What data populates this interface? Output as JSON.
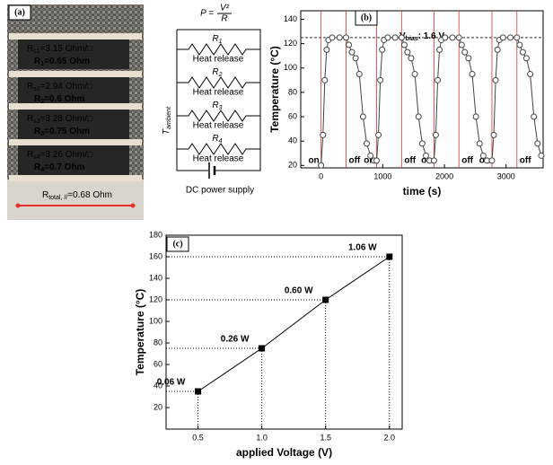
{
  "photo": {
    "label": "(a)",
    "samples": [
      {
        "sheet": {
          "main": "R",
          "sub": "s1",
          "rest": "=3.15 Ohm/□"
        },
        "resistance": {
          "main": "R",
          "sub": "1",
          "rest": "=0.65 Ohm"
        }
      },
      {
        "sheet": {
          "main": "R",
          "sub": "s2",
          "rest": "=2.94 Ohm/□"
        },
        "resistance": {
          "main": "R",
          "sub": "2",
          "rest": "=0.6 Ohm"
        }
      },
      {
        "sheet": {
          "main": "R",
          "sub": "s3",
          "rest": "=3.28 Ohm/□"
        },
        "resistance": {
          "main": "R",
          "sub": "3",
          "rest": "=0.75 Ohm"
        }
      },
      {
        "sheet": {
          "main": "R",
          "sub": "s4",
          "rest": "=3.26 Ohm/□"
        },
        "resistance": {
          "main": "R",
          "sub": "4",
          "rest": "=0.7 Ohm"
        }
      }
    ],
    "total": {
      "main": "R",
      "sub": "total, //",
      "rest": "=0.68 Ohm"
    }
  },
  "circuit": {
    "formula": {
      "lhs": "P =",
      "num": "V²",
      "den": "R"
    },
    "resistors": [
      {
        "name": {
          "main": "R",
          "sub": "1"
        },
        "note": "Heat release"
      },
      {
        "name": {
          "main": "R",
          "sub": "2"
        },
        "note": "Heat release"
      },
      {
        "name": {
          "main": "R",
          "sub": "3"
        },
        "note": "Heat release"
      },
      {
        "name": {
          "main": "R",
          "sub": "4"
        },
        "note": "Heat release"
      }
    ],
    "ambient": {
      "main": "T",
      "sub": "ambient"
    },
    "source": "DC power supply"
  },
  "chart_data": [
    {
      "type": "line",
      "panel_label": "(b)",
      "marker": "circle",
      "xlabel": "time (s)",
      "ylabel": "Temperature (°C)",
      "annotation_text": {
        "main": "V",
        "sub": "bias",
        "rest": ": 1.6 V"
      },
      "x": [
        0,
        30,
        60,
        90,
        120,
        180,
        300,
        405,
        450,
        500,
        560,
        620,
        680,
        740,
        800,
        860,
        900,
        930,
        960,
        990,
        1020,
        1080,
        1200,
        1305,
        1350,
        1400,
        1460,
        1520,
        1580,
        1640,
        1700,
        1760,
        1830,
        1860,
        1890,
        1920,
        1950,
        2010,
        2130,
        2235,
        2280,
        2330,
        2390,
        2450,
        2510,
        2570,
        2630,
        2690,
        2770,
        2800,
        2830,
        2860,
        2890,
        2950,
        3070,
        3175,
        3220,
        3270,
        3330,
        3390,
        3450,
        3510,
        3570
      ],
      "series": [
        {
          "color": "#444444",
          "values": [
            20,
            45,
            90,
            115,
            123,
            125,
            125,
            125,
            119,
            113,
            108,
            95,
            60,
            38,
            28,
            24,
            24,
            45,
            90,
            115,
            123,
            125,
            125,
            125,
            119,
            113,
            108,
            95,
            60,
            38,
            28,
            24,
            24,
            45,
            90,
            115,
            123,
            125,
            125,
            125,
            119,
            113,
            108,
            95,
            60,
            38,
            28,
            24,
            24,
            45,
            90,
            115,
            123,
            125,
            125,
            125,
            119,
            113,
            108,
            95,
            60,
            38,
            28
          ]
        }
      ],
      "reference_line": 125,
      "annotations": [
        {
          "label": "on",
          "x": 0
        },
        {
          "label": "off",
          "x": 405
        },
        {
          "label": "on",
          "x": 900
        },
        {
          "label": "off",
          "x": 1305
        },
        {
          "label": "on",
          "x": 1830
        },
        {
          "label": "off",
          "x": 2235
        },
        {
          "label": "on",
          "x": 2770
        },
        {
          "label": "off",
          "x": 3175
        }
      ],
      "annotation_color": "#e8302a",
      "xlim": [
        -330,
        3600
      ],
      "xticks": [
        0,
        1000,
        2000,
        3000
      ],
      "ylim": [
        18,
        147
      ],
      "yticks": [
        20,
        40,
        60,
        80,
        100,
        120,
        140
      ]
    },
    {
      "type": "line",
      "panel_label": "(c)",
      "marker": "square",
      "xlabel": "applied Voltage (V)",
      "ylabel": "Temperature (°C)",
      "x": [
        0.5,
        1,
        1.5,
        2
      ],
      "series": [
        {
          "color": "#000000",
          "values": [
            35,
            75,
            120,
            160
          ]
        }
      ],
      "point_labels": [
        "0.06 W",
        "0.26 W",
        "0.60 W",
        "1.06 W"
      ],
      "guides": true,
      "xlim": [
        0.25,
        2.1
      ],
      "xticks": [
        0.5,
        {
          "value": 1,
          "label": "1.0"
        },
        1.5,
        {
          "value": 2,
          "label": "2.0"
        }
      ],
      "ylim": [
        0,
        180
      ],
      "yticks": [
        20,
        40,
        60,
        80,
        100,
        120,
        140,
        160,
        180
      ]
    }
  ]
}
